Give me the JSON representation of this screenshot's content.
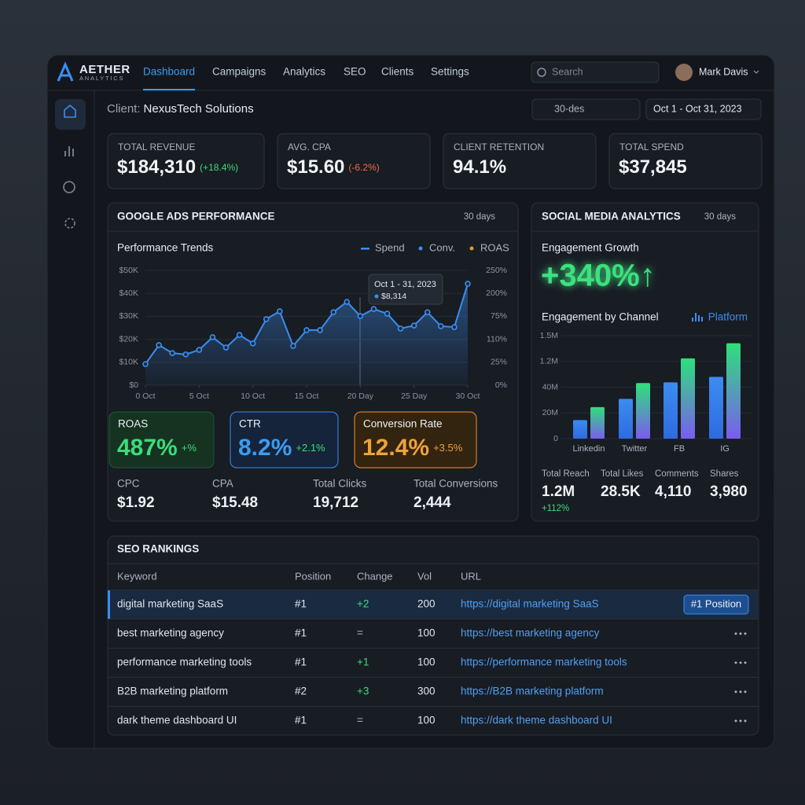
{
  "brand": {
    "name": "AETHER",
    "sub": "ANALYTICS"
  },
  "nav": [
    "Dashboard",
    "Campaigns",
    "Analytics",
    "SEO",
    "Clients",
    "Settings"
  ],
  "search": "Search",
  "user": "Mark Davis",
  "client": {
    "label": "Client:",
    "name": "NexusTech Solutions"
  },
  "filters": [
    "30-des",
    "Oct 1 - Oct 31, 2023"
  ],
  "kpis": [
    {
      "label": "TOTAL REVENUE",
      "value": "$184,310",
      "change": "(+18.4%)"
    },
    {
      "label": "AVG. CPA",
      "value": "$15.60",
      "change": "(-6.2%)"
    },
    {
      "label": "CLIENT RETENTION",
      "value": "94.1%"
    },
    {
      "label": "TOTAL SPEND",
      "value": "$37,845"
    }
  ],
  "google": {
    "title": "GOOGLE ADS PERFORMANCE",
    "period": "30 days",
    "metrics": [
      {
        "label": "ROAS",
        "value": "487%",
        "change": "+%"
      },
      {
        "label": "CTR",
        "value": "8.2%",
        "change": "+2.1%"
      },
      {
        "label": "Conversion Rate",
        "value": "12.4%",
        "change": "+3.5%"
      }
    ],
    "stats": [
      {
        "label": "CPC",
        "value": "$1.92"
      },
      {
        "label": "CPA",
        "value": "$15.48"
      },
      {
        "label": "Total Clicks",
        "value": "19,712"
      },
      {
        "label": "Total Conversions",
        "value": "2,444"
      }
    ]
  },
  "social": {
    "title": "SOCIAL MEDIA ANALYTICS",
    "period": "30 days",
    "growth_label": "Engagement Growth",
    "growth": "+340%↑",
    "channel_title": "Engagement by Channel",
    "channel_filter": "Platform",
    "stats": [
      {
        "label": "Total Reach",
        "value": "1.2M",
        "change": "+112%"
      },
      {
        "label": "Total Likes",
        "value": "28.5K"
      },
      {
        "label": "Comments",
        "value": "4,110"
      },
      {
        "label": "Shares",
        "value": "3,980"
      }
    ]
  },
  "chart_data": [
    {
      "type": "line",
      "title": "Performance Trends",
      "legend": [
        {
          "name": "Spend",
          "color": "#3b8df0"
        },
        {
          "name": "Conv.",
          "color": "#3b8df0"
        },
        {
          "name": "ROAS",
          "color": "#f0922e"
        }
      ],
      "x": [
        0,
        1.25,
        2.5,
        3.75,
        5,
        6.25,
        7.5,
        8.75,
        10,
        11.25,
        12.5,
        13.75,
        15,
        16.25,
        17.5,
        18.75,
        20,
        21.25,
        22.5,
        23.75,
        25,
        26.25,
        27.5,
        28.75,
        30
      ],
      "series": [
        {
          "color": "#3b8df0",
          "values": [
            9200,
            17500,
            14000,
            13400,
            15400,
            20900,
            16400,
            21900,
            18200,
            28800,
            32200,
            17100,
            24000,
            24000,
            31800,
            36300,
            30100,
            33200,
            31200,
            24700,
            26000,
            31800,
            25700,
            25300,
            44200
          ]
        }
      ],
      "xlim": [
        0,
        30
      ],
      "xticks": [
        {
          "value": 0,
          "label": "0 Oct"
        },
        {
          "value": 5,
          "label": "5 Oct"
        },
        {
          "value": 10,
          "label": "10 Oct"
        },
        {
          "value": 15,
          "label": "15 Oct"
        },
        {
          "value": 20,
          "label": "20 Day"
        },
        {
          "value": 25,
          "label": "25 Day"
        },
        {
          "value": 30,
          "label": "30 Oct"
        }
      ],
      "ylim": [
        0,
        50000
      ],
      "yticks": [
        {
          "value": 0,
          "label": "$0"
        },
        {
          "value": 10000,
          "label": "$10K"
        },
        {
          "value": 20000,
          "label": "$20K"
        },
        {
          "value": 30000,
          "label": "$30K"
        },
        {
          "value": 40000,
          "label": "$40K"
        },
        {
          "value": 50000,
          "label": "$50K"
        }
      ],
      "y2_labels": [
        "0%",
        "25%",
        "110%",
        "75%",
        "200%",
        "250%"
      ],
      "tooltip": {
        "title": "Oct 1 - 31, 2023",
        "value": "$8,314"
      },
      "grid": true
    },
    {
      "type": "bar",
      "categories": [
        "Linkedin",
        "Twitter",
        "FB",
        "IG"
      ],
      "series": [
        {
          "color": "#3b8df0",
          "values": [
            270000,
            580000,
            820000,
            900000
          ]
        },
        {
          "color": "#2ee07a",
          "values": [
            460000,
            810000,
            1170000,
            1390000
          ]
        }
      ],
      "ylim": [
        0,
        1500000
      ],
      "y_labels": [
        "0",
        "20M",
        "40M",
        "1.2M",
        "1.5M"
      ],
      "grid": true
    }
  ],
  "seo": {
    "title": "SEO RANKINGS",
    "columns": [
      "Keyword",
      "Position",
      "Change",
      "Vol",
      "URL"
    ],
    "badge": "#1 Position",
    "rows": [
      [
        "digital marketing SaaS",
        "#1",
        "+2",
        "200",
        "https://digital marketing SaaS"
      ],
      [
        "best marketing agency",
        "#1",
        "=",
        "100",
        "https://best marketing agency"
      ],
      [
        "performance marketing tools",
        "#1",
        "+1",
        "100",
        "https://performance marketing tools"
      ],
      [
        "B2B marketing platform",
        "#2",
        "+3",
        "300",
        "https://B2B marketing platform"
      ],
      [
        "dark theme dashboard UI",
        "#1",
        "=",
        "100",
        "https://dark theme dashboard UI"
      ]
    ]
  }
}
